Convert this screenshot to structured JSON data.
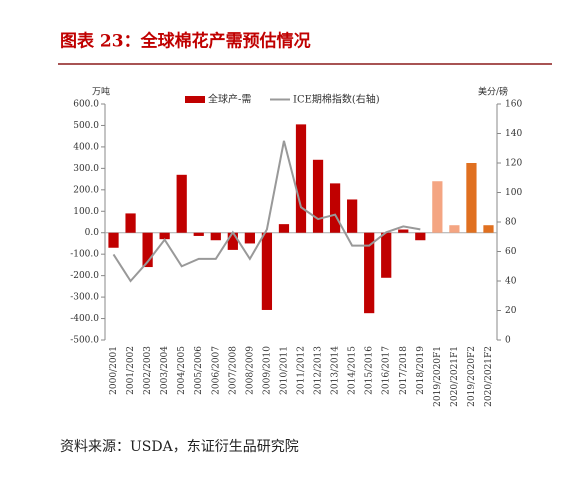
{
  "chart_data": {
    "type": "bar_line",
    "title": "图表 23：全球棉花产需预估情况",
    "source": "资料来源：USDA，东证衍生品研究院",
    "y_unit": "万吨",
    "y2_unit": "美分/磅",
    "categories": [
      "2000/2001",
      "2001/2002",
      "2002/2003",
      "2003/2004",
      "2004/2005",
      "2005/2006",
      "2006/2007",
      "2007/2008",
      "2008/2009",
      "2009/2010",
      "2010/2011",
      "2011/2012",
      "2012/2013",
      "2013/2014",
      "2014/2015",
      "2015/2016",
      "2016/2017",
      "2017/2018",
      "2018/2019",
      "2019/2020F1",
      "2020/2021F1",
      "2019/2020F2",
      "2020/2021F2"
    ],
    "series": [
      {
        "name": "全球产-需",
        "type": "bar",
        "color": "#c00000",
        "colors": [
          "#c00000",
          "#c00000",
          "#c00000",
          "#c00000",
          "#c00000",
          "#c00000",
          "#c00000",
          "#c00000",
          "#c00000",
          "#c00000",
          "#c00000",
          "#c00000",
          "#c00000",
          "#c00000",
          "#c00000",
          "#c00000",
          "#c00000",
          "#c00000",
          "#c00000",
          "#f4a582",
          "#f4a582",
          "#e07020",
          "#e07020"
        ],
        "values": [
          -70,
          90,
          -160,
          -30,
          270,
          -15,
          -35,
          -80,
          -50,
          -360,
          40,
          505,
          340,
          230,
          155,
          -375,
          -210,
          15,
          -35,
          240,
          35,
          325,
          35
        ]
      },
      {
        "name": "ICE期棉指数(右轴)",
        "type": "line",
        "axis": "y2",
        "color": "#999999",
        "values": [
          58,
          40,
          53,
          68,
          50,
          55,
          55,
          73,
          55,
          75,
          135,
          90,
          82,
          85,
          64,
          64,
          73,
          77,
          75,
          null,
          null,
          null,
          null
        ]
      }
    ],
    "ylim": [
      -500,
      600
    ],
    "yticks": [
      {
        "value": -500,
        "label": "-500.0"
      },
      {
        "value": -400,
        "label": "-400.0"
      },
      {
        "value": -300,
        "label": "-300.0"
      },
      {
        "value": -200,
        "label": "-200.0"
      },
      {
        "value": -100,
        "label": "-100.0"
      },
      {
        "value": 0,
        "label": "0.0"
      },
      {
        "value": 100,
        "label": "100.0"
      },
      {
        "value": 200,
        "label": "200.0"
      },
      {
        "value": 300,
        "label": "300.0"
      },
      {
        "value": 400,
        "label": "400.0"
      },
      {
        "value": 500,
        "label": "500.0"
      },
      {
        "value": 600,
        "label": "600.0"
      }
    ],
    "y2lim": [
      0,
      160
    ],
    "y2ticks": [
      0,
      20,
      40,
      60,
      80,
      100,
      120,
      140,
      160
    ]
  }
}
